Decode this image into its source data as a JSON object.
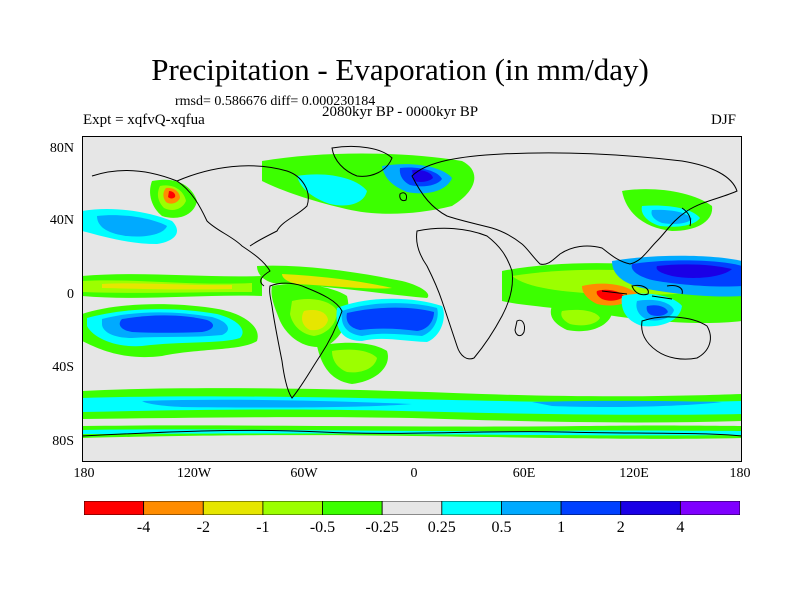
{
  "title": "Precipitation - Evaporation (in mm/day)",
  "stats": "rmsd= 0.586676 diff= 0.000230184",
  "subtitle": "2080kyr BP - 0000kyr BP",
  "experiment": "Expt = xqfvQ-xqfua",
  "season": "DJF",
  "lat_ticks": [
    "80N",
    "40N",
    "0",
    "40S",
    "80S"
  ],
  "lon_ticks": [
    "180",
    "120W",
    "60W",
    "0",
    "60E",
    "120E",
    "180"
  ],
  "colorbar": {
    "colors": [
      "#ff0000",
      "#ff8c00",
      "#e6e600",
      "#9cff00",
      "#3cff00",
      "#e6e6e6",
      "#00ffff",
      "#00aaff",
      "#0040ff",
      "#1a00e6",
      "#7f00ff"
    ],
    "labels": [
      "-4",
      "-2",
      "-1",
      "-0.5",
      "-0.25",
      "0.25",
      "0.5",
      "1",
      "2",
      "4"
    ]
  },
  "palette": {
    "background": "#e6e6e6",
    "coast": "#000000"
  }
}
